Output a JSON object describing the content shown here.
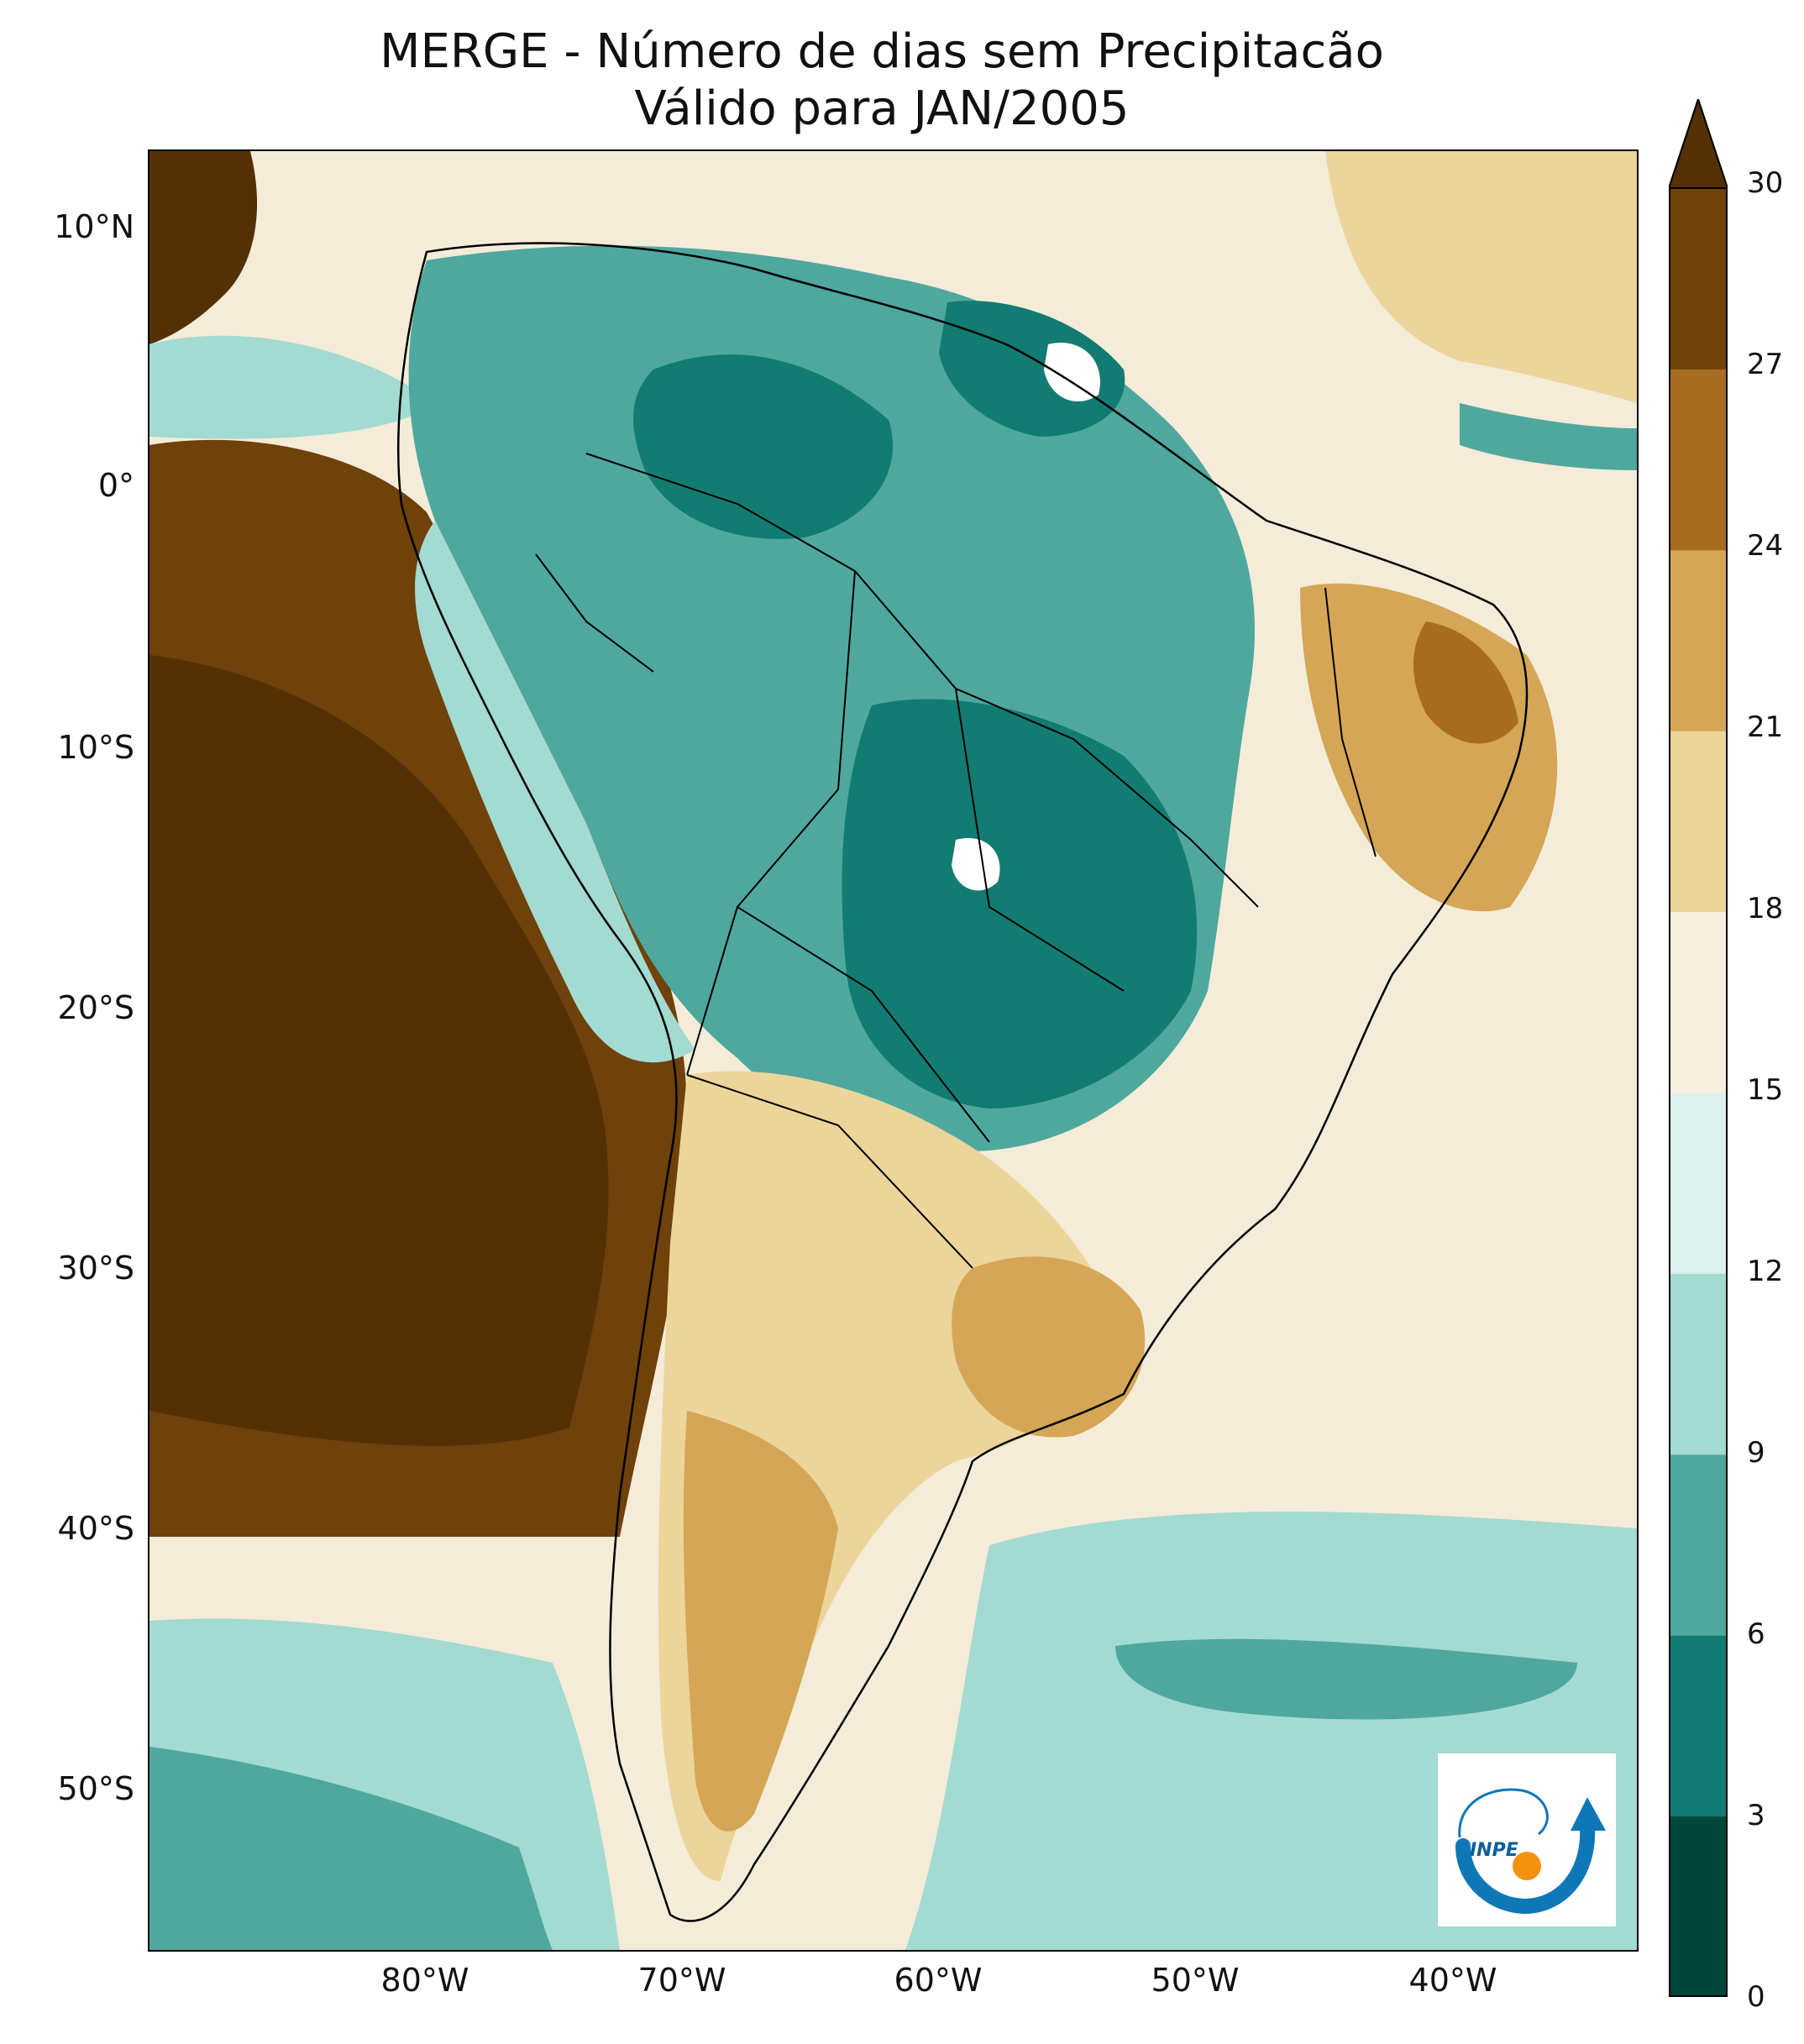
{
  "title": {
    "line1": "MERGE - Número de dias sem Precipitacão",
    "line2": "Válido para JAN/2005"
  },
  "axes": {
    "y_labels": [
      "10°N",
      "0°",
      "10°S",
      "20°S",
      "30°S",
      "40°S",
      "50°S"
    ],
    "x_labels": [
      "80°W",
      "70°W",
      "60°W",
      "50°W",
      "40°W"
    ],
    "lon_range": [
      -90,
      -32
    ],
    "lat_range": [
      -56,
      13
    ]
  },
  "colorbar": {
    "ticks": [
      "0",
      "3",
      "6",
      "9",
      "12",
      "15",
      "18",
      "21",
      "24",
      "27",
      "30"
    ],
    "colors": [
      "#01463a",
      "#127c72",
      "#4fa89e",
      "#a3dad1",
      "#dcf0ee",
      "#f6efdf",
      "#ecd59b",
      "#d5a656",
      "#a86c20",
      "#6f410b"
    ],
    "extend": "max",
    "overflow_color": "#543005"
  },
  "map_field": {
    "variable": "Número de dias sem Precipitação",
    "period": "JAN/2005",
    "units": "days"
  },
  "logo": {
    "text": "INPE",
    "arrow_color": "#0f77b6",
    "dot_color": "#f39210"
  }
}
